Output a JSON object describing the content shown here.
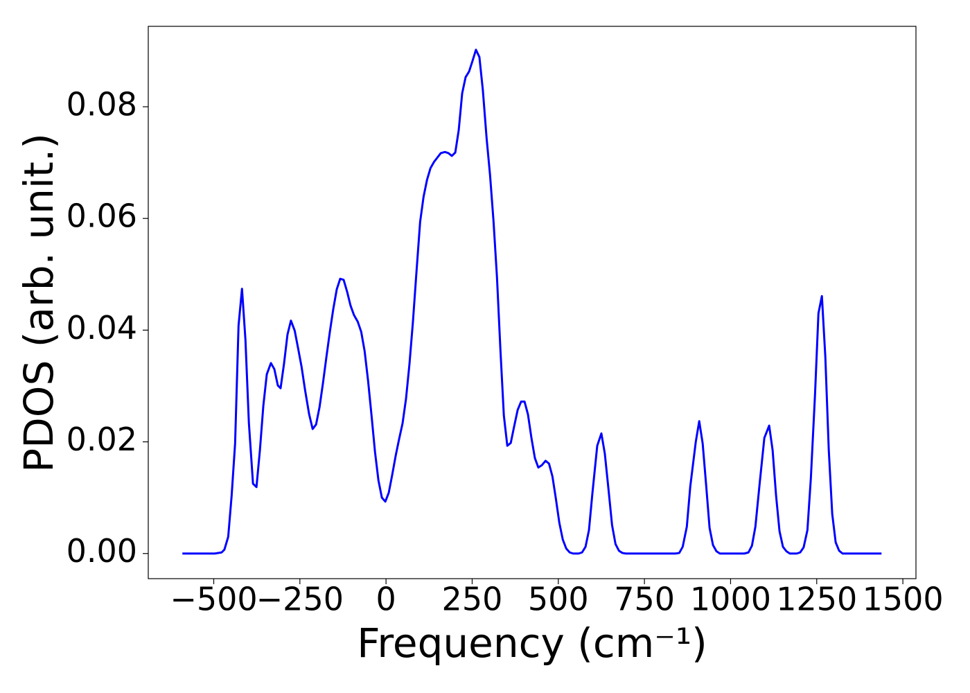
{
  "chart_data": {
    "type": "line",
    "x_label": "Frequency (cm⁻¹)",
    "y_label": "PDOS (arb. unit.)",
    "color": "#0000ff",
    "x": [
      -591,
      -497,
      -477,
      -469,
      -458,
      -448,
      -438,
      -428,
      -418,
      -408,
      -398,
      -386,
      -376,
      -366,
      -356,
      -346,
      -334,
      -324,
      -314,
      -306,
      -296,
      -286,
      -276,
      -265,
      -255,
      -245,
      -235,
      -223,
      -213,
      -203,
      -193,
      -183,
      -173,
      -163,
      -153,
      -143,
      -133,
      -123,
      -113,
      -103,
      -93,
      -82,
      -72,
      -62,
      -52,
      -42,
      -32,
      -22,
      -12,
      -2,
      8,
      18,
      28,
      38,
      48,
      58,
      68,
      78,
      88,
      99,
      109,
      119,
      129,
      139,
      149,
      159,
      171,
      181,
      191,
      201,
      211,
      221,
      231,
      241,
      251,
      261,
      271,
      281,
      292,
      302,
      312,
      322,
      332,
      342,
      352,
      362,
      372,
      382,
      392,
      402,
      412,
      422,
      432,
      442,
      452,
      463,
      473,
      483,
      493,
      503,
      513,
      523,
      533,
      543,
      559,
      569,
      579,
      589,
      599,
      613,
      625,
      635,
      646,
      656,
      666,
      676,
      686,
      696,
      840,
      851,
      861,
      873,
      883,
      899,
      909,
      919,
      929,
      939,
      949,
      959,
      969,
      1040,
      1052,
      1062,
      1072,
      1084,
      1098,
      1112,
      1122,
      1132,
      1142,
      1152,
      1162,
      1172,
      1192,
      1202,
      1212,
      1223,
      1233,
      1245,
      1255,
      1265,
      1275,
      1285,
      1295,
      1305,
      1315,
      1325,
      1438
    ],
    "values": [
      0,
      0,
      0.0002,
      0.0007,
      0.003,
      0.0104,
      0.0197,
      0.0408,
      0.0474,
      0.0383,
      0.0234,
      0.0125,
      0.0119,
      0.0185,
      0.0265,
      0.0321,
      0.0341,
      0.033,
      0.0301,
      0.0296,
      0.034,
      0.0392,
      0.0417,
      0.0399,
      0.0367,
      0.0334,
      0.0293,
      0.0249,
      0.0223,
      0.0231,
      0.0262,
      0.0305,
      0.0352,
      0.0397,
      0.0438,
      0.0473,
      0.0492,
      0.049,
      0.0469,
      0.0444,
      0.0427,
      0.0415,
      0.0397,
      0.0362,
      0.0309,
      0.0247,
      0.0182,
      0.0131,
      0.01,
      0.0093,
      0.0109,
      0.0141,
      0.0175,
      0.0205,
      0.0233,
      0.0277,
      0.0339,
      0.0414,
      0.0501,
      0.0594,
      0.0639,
      0.0669,
      0.069,
      0.0701,
      0.0709,
      0.0717,
      0.0719,
      0.0717,
      0.0712,
      0.0718,
      0.0758,
      0.0824,
      0.0853,
      0.0863,
      0.0882,
      0.0902,
      0.0889,
      0.083,
      0.0743,
      0.0677,
      0.0595,
      0.0495,
      0.0365,
      0.0247,
      0.0193,
      0.0198,
      0.0228,
      0.0257,
      0.0272,
      0.0272,
      0.0249,
      0.0207,
      0.0171,
      0.0154,
      0.0158,
      0.0166,
      0.0161,
      0.0138,
      0.0098,
      0.0055,
      0.0025,
      0.0009,
      0.0002,
      0,
      0,
      0.0002,
      0.0012,
      0.0042,
      0.0108,
      0.0193,
      0.0215,
      0.0179,
      0.0113,
      0.0051,
      0.0017,
      0.0005,
      0.0001,
      0,
      0,
      0.0001,
      0.0012,
      0.0048,
      0.012,
      0.02,
      0.0237,
      0.0197,
      0.0123,
      0.0046,
      0.0015,
      0.0004,
      0,
      0,
      0.0002,
      0.0014,
      0.0048,
      0.0123,
      0.0207,
      0.0229,
      0.0185,
      0.0104,
      0.004,
      0.0012,
      0.0004,
      0,
      0,
      0.0002,
      0.0011,
      0.0042,
      0.0135,
      0.0284,
      0.043,
      0.0461,
      0.0352,
      0.0185,
      0.0071,
      0.002,
      0.0005,
      0,
      0
    ],
    "xlim": [
      -690,
      1538
    ],
    "ylim": [
      -0.0045,
      0.0944
    ],
    "xticks": [
      {
        "value": -500,
        "label": "−500"
      },
      {
        "value": -250,
        "label": "−250"
      },
      0,
      250,
      500,
      750,
      1000,
      1250,
      1500
    ],
    "yticks": [
      {
        "value": 0,
        "label": "0.00"
      },
      {
        "value": 0.02,
        "label": "0.02"
      },
      {
        "value": 0.04,
        "label": "0.04"
      },
      {
        "value": 0.06,
        "label": "0.06"
      },
      {
        "value": 0.08,
        "label": "0.08"
      }
    ],
    "grid": false
  }
}
